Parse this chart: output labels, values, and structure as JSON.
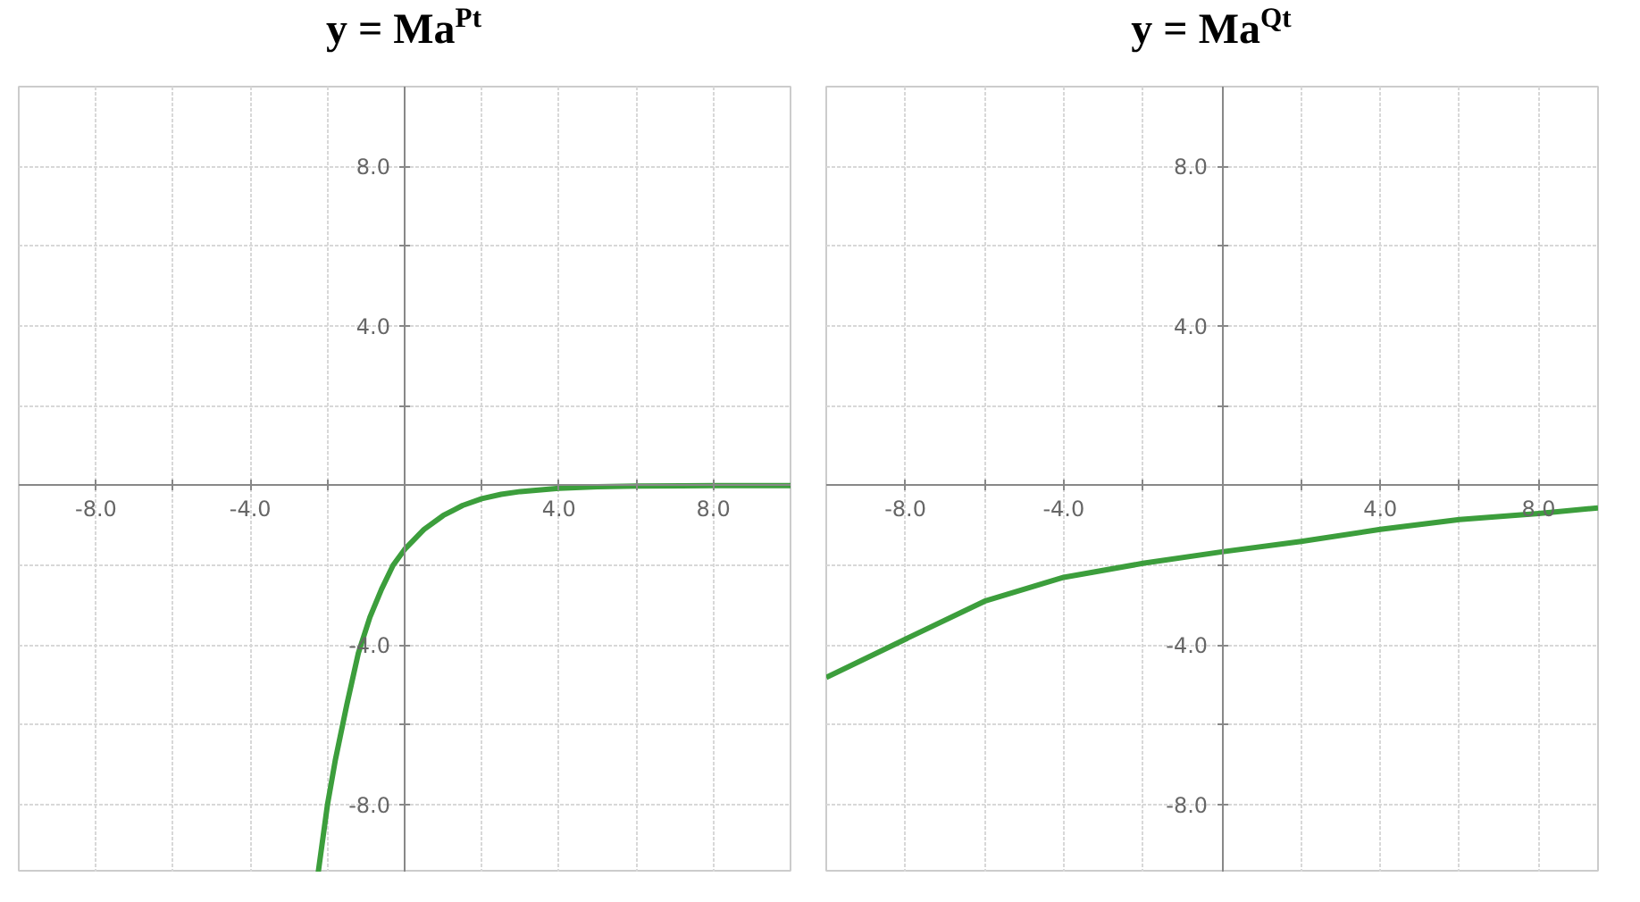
{
  "chart_data": [
    {
      "type": "line",
      "title": "y = Ma$^{Pt}$",
      "x": [
        -2.24,
        -2,
        -1.8,
        -1.5,
        -1.2,
        -0.9,
        -0.6,
        -0.3,
        0,
        0.5,
        1,
        1.5,
        2,
        2.5,
        3,
        4,
        5,
        6,
        8,
        10
      ],
      "series": [
        {
          "color": "#3c9e3c",
          "values": [
            -9.7,
            -8.0,
            -6.9,
            -5.5,
            -4.2,
            -3.3,
            -2.6,
            -2.0,
            -1.6,
            -1.1,
            -0.75,
            -0.5,
            -0.33,
            -0.22,
            -0.15,
            -0.07,
            -0.03,
            -0.01,
            0,
            0
          ]
        }
      ],
      "xlim": [
        -10,
        10
      ],
      "ylim": [
        -9.7,
        10
      ],
      "xticks": [
        {
          "value": -8,
          "label": "-8.0"
        },
        {
          "value": -6,
          "label": null
        },
        {
          "value": -4,
          "label": "-4.0"
        },
        {
          "value": -2,
          "label": null
        },
        {
          "value": 2,
          "label": null
        },
        {
          "value": 4,
          "label": "4.0"
        },
        {
          "value": 6,
          "label": null
        },
        {
          "value": 8,
          "label": "8.0"
        }
      ],
      "yticks": [
        {
          "value": -8,
          "label": "-8.0"
        },
        {
          "value": -6,
          "label": null
        },
        {
          "value": -4,
          "label": "-4.0"
        },
        {
          "value": -2,
          "label": null
        },
        {
          "value": 2,
          "label": null
        },
        {
          "value": 4,
          "label": "4.0"
        },
        {
          "value": 6,
          "label": null
        },
        {
          "value": 8,
          "label": "8.0"
        }
      ],
      "grid": true
    },
    {
      "type": "line",
      "title": "y = Ma$^{Qt}$",
      "x": [
        -10,
        -8,
        -6,
        -4,
        -2,
        0,
        2,
        4,
        6,
        8,
        9.5
      ],
      "series": [
        {
          "color": "#3c9e3c",
          "values": [
            -4.81,
            -3.85,
            -2.9,
            -2.3,
            -1.95,
            -1.66,
            -1.4,
            -1.1,
            -0.85,
            -0.7,
            -0.56
          ]
        }
      ],
      "xlim": [
        -10,
        9.5
      ],
      "ylim": [
        -9.7,
        10
      ],
      "xticks": [
        {
          "value": -8,
          "label": "-8.0"
        },
        {
          "value": -6,
          "label": null
        },
        {
          "value": -4,
          "label": "-4.0"
        },
        {
          "value": -2,
          "label": null
        },
        {
          "value": 2,
          "label": null
        },
        {
          "value": 4,
          "label": "4.0"
        },
        {
          "value": 6,
          "label": null
        },
        {
          "value": 8,
          "label": "8.0"
        }
      ],
      "yticks": [
        {
          "value": -8,
          "label": "-8.0"
        },
        {
          "value": -6,
          "label": null
        },
        {
          "value": -4,
          "label": "-4.0"
        },
        {
          "value": -2,
          "label": null
        },
        {
          "value": 2,
          "label": null
        },
        {
          "value": 4,
          "label": "4.0"
        },
        {
          "value": 6,
          "label": null
        },
        {
          "value": 8,
          "label": "8.0"
        }
      ],
      "grid": true
    }
  ]
}
